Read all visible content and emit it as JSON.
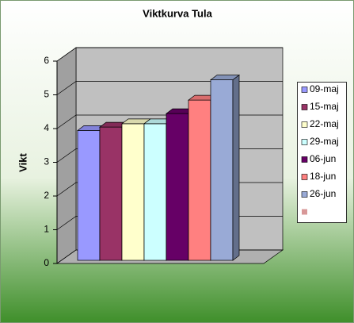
{
  "chart_data": {
    "type": "bar3d",
    "title": "Viktkurva Tula",
    "y_label": "Vikt",
    "categories": [
      null
    ],
    "series": [
      {
        "name": "09-maj",
        "color": "#9999ff",
        "values": [
          3.85
        ]
      },
      {
        "name": "15-maj",
        "color": "#993366",
        "values": [
          3.95
        ]
      },
      {
        "name": "22-maj",
        "color": "#ffffcc",
        "values": [
          4.05
        ]
      },
      {
        "name": "29-maj",
        "color": "#ccffff",
        "values": [
          4.05
        ]
      },
      {
        "name": "06-jun",
        "color": "#660066",
        "values": [
          4.35
        ]
      },
      {
        "name": "18-jun",
        "color": "#ff8080",
        "values": [
          4.75
        ]
      },
      {
        "name": "26-jun",
        "color": "#99aad6",
        "values": [
          5.35
        ]
      },
      {
        "name": null,
        "color": "#d89898",
        "values": [
          null
        ]
      }
    ],
    "ylim": [
      0,
      6
    ],
    "yticks": [
      0,
      1,
      2,
      3,
      4,
      5,
      6
    ],
    "grid": true,
    "legend": "right"
  }
}
